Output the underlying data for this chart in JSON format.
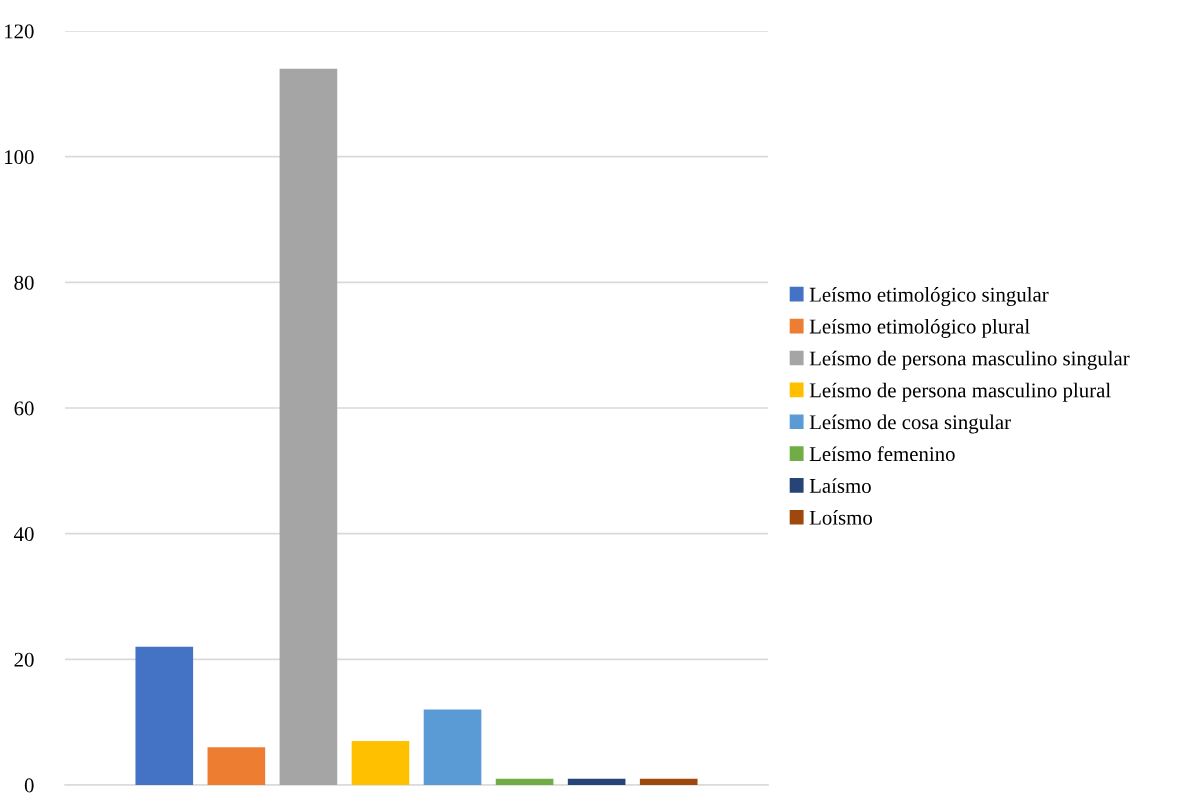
{
  "chart_data": {
    "type": "bar",
    "categories": [
      null
    ],
    "series": [
      {
        "name": "Leísmo etimológico singular",
        "color": "#4472c4",
        "values": [
          22
        ]
      },
      {
        "name": "Leísmo etimológico plural",
        "color": "#ed7d31",
        "values": [
          6
        ]
      },
      {
        "name": "Leísmo de persona masculino singular",
        "color": "#a5a5a5",
        "values": [
          114
        ]
      },
      {
        "name": "Leísmo de persona masculino plural",
        "color": "#ffc000",
        "values": [
          7
        ]
      },
      {
        "name": "Leísmo de cosa singular",
        "color": "#5b9bd5",
        "values": [
          12
        ]
      },
      {
        "name": "Leísmo femenino",
        "color": "#70ad47",
        "values": [
          1
        ]
      },
      {
        "name": "Laísmo",
        "color": "#264478",
        "values": [
          1
        ]
      },
      {
        "name": "Loísmo",
        "color": "#9e480e",
        "values": [
          1
        ]
      }
    ],
    "ylim": [
      0,
      120
    ],
    "yticks": [
      0,
      20,
      40,
      60,
      80,
      100,
      120
    ],
    "grid": "y",
    "legend": "right",
    "tick_labels": "y"
  }
}
